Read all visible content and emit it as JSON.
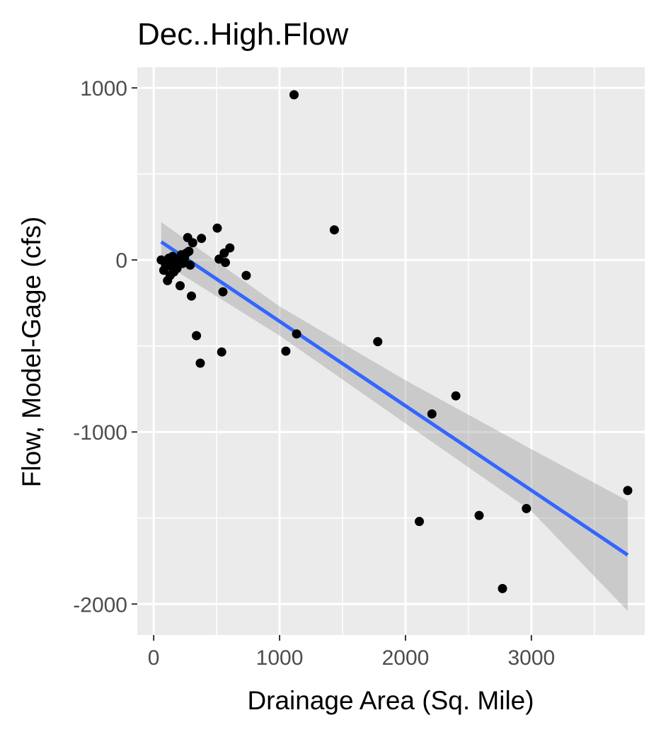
{
  "chart_data": {
    "type": "scatter",
    "title": "Dec..High.Flow",
    "xlabel": "Drainage Area (Sq. Mile)",
    "ylabel": "Flow, Model-Gage (cfs)",
    "xlim": [
      -130,
      3900
    ],
    "ylim": [
      -2180,
      1120
    ],
    "x_ticks": [
      0,
      1000,
      2000,
      3000
    ],
    "x_tick_labels": [
      "0",
      "1000",
      "2000",
      "3000"
    ],
    "y_ticks": [
      -2000,
      -1000,
      0,
      1000
    ],
    "y_tick_labels": [
      "-2000",
      "-1000",
      "0",
      "1000"
    ],
    "grid": true,
    "panel_background": "#ebebeb",
    "point_color": "#000000",
    "series": [
      {
        "points": [
          {
            "x": 60,
            "y": 0
          },
          {
            "x": 80,
            "y": -60
          },
          {
            "x": 95,
            "y": -30
          },
          {
            "x": 110,
            "y": -120
          },
          {
            "x": 120,
            "y": 10
          },
          {
            "x": 130,
            "y": -90
          },
          {
            "x": 140,
            "y": -40
          },
          {
            "x": 150,
            "y": 20
          },
          {
            "x": 160,
            "y": -70
          },
          {
            "x": 170,
            "y": -10
          },
          {
            "x": 185,
            "y": -50
          },
          {
            "x": 200,
            "y": 0
          },
          {
            "x": 210,
            "y": -150
          },
          {
            "x": 220,
            "y": 30
          },
          {
            "x": 230,
            "y": -20
          },
          {
            "x": 245,
            "y": 10
          },
          {
            "x": 260,
            "y": 40
          },
          {
            "x": 270,
            "y": 130
          },
          {
            "x": 280,
            "y": 50
          },
          {
            "x": 290,
            "y": -30
          },
          {
            "x": 300,
            "y": -210
          },
          {
            "x": 310,
            "y": 100
          },
          {
            "x": 340,
            "y": -440
          },
          {
            "x": 370,
            "y": -600
          },
          {
            "x": 380,
            "y": 125
          },
          {
            "x": 505,
            "y": 185
          },
          {
            "x": 520,
            "y": 5
          },
          {
            "x": 540,
            "y": -535
          },
          {
            "x": 550,
            "y": -185
          },
          {
            "x": 560,
            "y": 40
          },
          {
            "x": 570,
            "y": -15
          },
          {
            "x": 605,
            "y": 70
          },
          {
            "x": 735,
            "y": -90
          },
          {
            "x": 1050,
            "y": -530
          },
          {
            "x": 1115,
            "y": 960
          },
          {
            "x": 1135,
            "y": -430
          },
          {
            "x": 1435,
            "y": 175
          },
          {
            "x": 1780,
            "y": -475
          },
          {
            "x": 2110,
            "y": -1520
          },
          {
            "x": 2210,
            "y": -895
          },
          {
            "x": 2400,
            "y": -790
          },
          {
            "x": 2585,
            "y": -1485
          },
          {
            "x": 2770,
            "y": -1910
          },
          {
            "x": 2960,
            "y": -1445
          },
          {
            "x": 3765,
            "y": -1340
          }
        ]
      }
    ],
    "fit_line": {
      "method": "lm",
      "color": "#3366ff",
      "x": [
        60,
        3765
      ],
      "y": [
        105,
        -1715
      ]
    },
    "confidence_band": {
      "color": "#999999",
      "x": [
        60,
        1000,
        2000,
        3000,
        3765
      ],
      "lower": [
        -10,
        -440,
        -950,
        -1460,
        -2040
      ],
      "upper": [
        220,
        -270,
        -700,
        -1100,
        -1400
      ]
    }
  }
}
